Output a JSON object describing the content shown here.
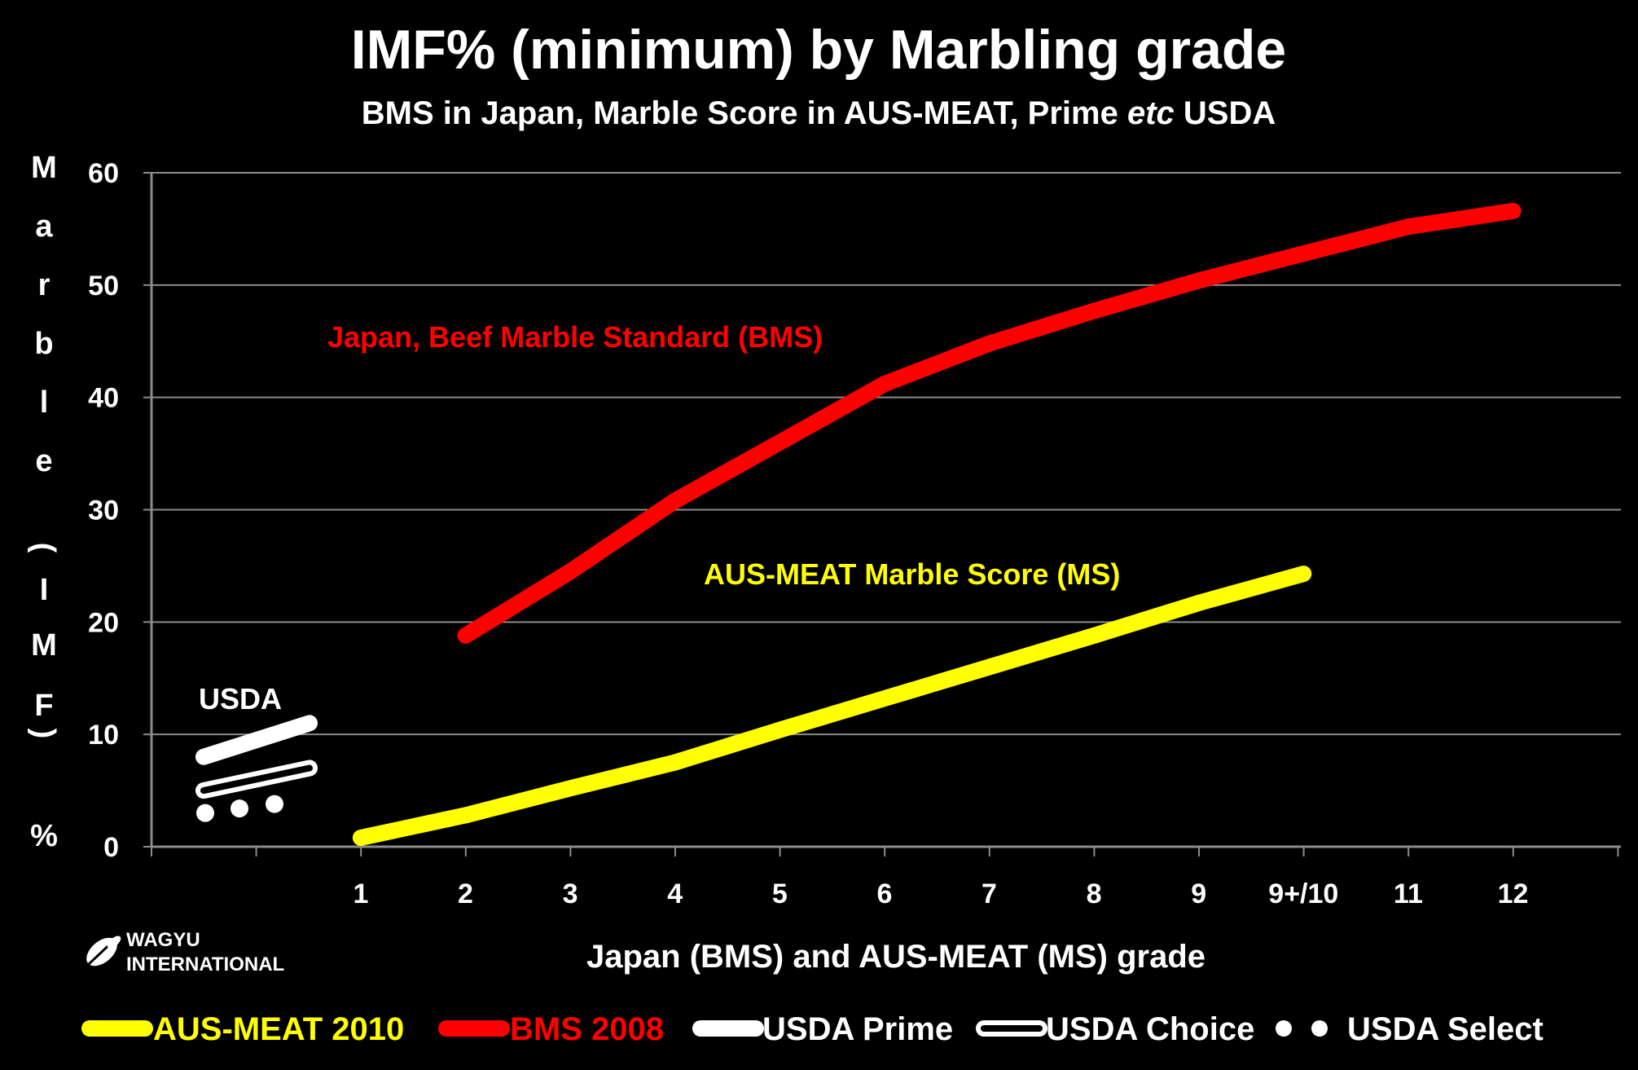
{
  "chart_data": {
    "type": "line",
    "title": "IMF% (minimum) by Marbling grade",
    "subtitle_parts": [
      "BMS in Japan, Marble Score in AUS-MEAT,  Prime ",
      "etc",
      " USDA"
    ],
    "xlabel": "Japan (BMS) and AUS-MEAT (MS) grade",
    "ylabel": "Marble (IMF) %",
    "ylabel_chars": [
      "M",
      "a",
      "r",
      "b",
      "l",
      "e",
      "(",
      "I",
      "M",
      "F",
      ")",
      "%"
    ],
    "ylim": [
      0,
      60
    ],
    "yticks": [
      0,
      10,
      20,
      30,
      40,
      50,
      60
    ],
    "x_categories": [
      "1",
      "2",
      "3",
      "4",
      "5",
      "6",
      "7",
      "8",
      "9",
      "9+/10",
      "11",
      "12"
    ],
    "grid": true,
    "series": [
      {
        "name": "BMS 2008",
        "color": "#ff0000",
        "points": [
          {
            "x": "2",
            "y": 18.8
          },
          {
            "x": "3",
            "y": 24.5
          },
          {
            "x": "4",
            "y": 30.8
          },
          {
            "x": "5",
            "y": 36.0
          },
          {
            "x": "6",
            "y": 41.2
          },
          {
            "x": "7",
            "y": 44.8
          },
          {
            "x": "8",
            "y": 47.7
          },
          {
            "x": "9",
            "y": 50.4
          },
          {
            "x": "9+/10",
            "y": 52.8
          },
          {
            "x": "11",
            "y": 55.2
          },
          {
            "x": "12",
            "y": 56.6
          }
        ]
      },
      {
        "name": "AUS-MEAT 2010",
        "color": "#ffff00",
        "points": [
          {
            "x": "1",
            "y": 0.8
          },
          {
            "x": "2",
            "y": 2.8
          },
          {
            "x": "3",
            "y": 5.2
          },
          {
            "x": "4",
            "y": 7.5
          },
          {
            "x": "5",
            "y": 10.4
          },
          {
            "x": "6",
            "y": 13.2
          },
          {
            "x": "7",
            "y": 16.0
          },
          {
            "x": "8",
            "y": 18.8
          },
          {
            "x": "9",
            "y": 21.7
          },
          {
            "x": "9+/10",
            "y": 24.3
          }
        ]
      }
    ],
    "usda": {
      "label": "USDA",
      "prime": {
        "name": "USDA Prime",
        "y_range": [
          8,
          11
        ]
      },
      "choice": {
        "name": "USDA Choice",
        "y_range": [
          5,
          7
        ]
      },
      "select": {
        "name": "USDA Select",
        "values": [
          3,
          3.4,
          3.8
        ]
      }
    },
    "annotations": {
      "bms": "Japan, Beef Marble Standard (BMS)",
      "ausmeat": "AUS-MEAT Marble Score (MS)"
    },
    "legend": {
      "placement": "bottom",
      "entries": [
        {
          "label": "AUS-MEAT 2010",
          "color": "#ffff00",
          "style": "line"
        },
        {
          "label": "BMS 2008",
          "color": "#ff0000",
          "style": "line"
        },
        {
          "label": "USDA Prime",
          "color": "#ffffff",
          "style": "line"
        },
        {
          "label": "USDA Choice",
          "color": "#ffffff",
          "style": "outline"
        },
        {
          "label": "USDA Select",
          "color": "#ffffff",
          "style": "dots"
        }
      ]
    }
  },
  "logo": {
    "line1": "WAGYU",
    "line2": "INTERNATIONAL"
  }
}
